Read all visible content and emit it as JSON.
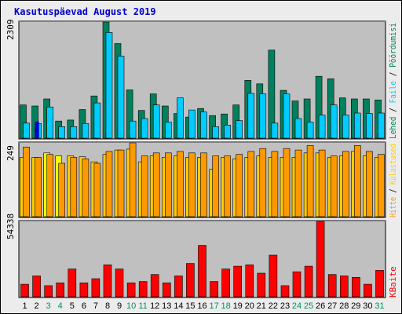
{
  "title": "Kasutuspäevad August 2019",
  "colors": {
    "title": "#0000cc",
    "page": "#ececec",
    "plot": "#c0c0c0",
    "grid": "#808080",
    "weekday_label": "#000000",
    "weekend_label": "#009060",
    "pages": "#00805c",
    "files": "#00ccff",
    "hits": "#ff9900",
    "visits": "#ffcc00",
    "visits_highlight": "#ffff00",
    "kbytes": "#ff0000",
    "legend_hits": "#ff9900",
    "legend_visits": "#ffcc00",
    "legend_files": "#00ccff",
    "legend_pages": "#00805c",
    "legend_kbytes": "#ff0000",
    "legend_sep": "#000000"
  },
  "chart_data": {
    "type": "bar",
    "days": [
      "1",
      "2",
      "3",
      "4",
      "5",
      "6",
      "7",
      "8",
      "9",
      "10",
      "11",
      "12",
      "13",
      "14",
      "15",
      "16",
      "17",
      "18",
      "19",
      "20",
      "21",
      "22",
      "23",
      "24",
      "25",
      "26",
      "27",
      "28",
      "29",
      "30",
      "31"
    ],
    "weekend": [
      false,
      false,
      true,
      true,
      false,
      false,
      false,
      false,
      false,
      true,
      true,
      false,
      false,
      false,
      false,
      false,
      true,
      true,
      false,
      false,
      false,
      false,
      false,
      true,
      true,
      false,
      false,
      false,
      false,
      false,
      true
    ],
    "panels": [
      {
        "id": "top",
        "ylabel": "2309",
        "ymax": 2309,
        "series": [
          {
            "name": "Lehed",
            "color": "#00805c",
            "values": [
              660,
              640,
              780,
              340,
              360,
              570,
              840,
              2309,
              1880,
              960,
              550,
              880,
              640,
              490,
              420,
              590,
              450,
              480,
              660,
              1150,
              1080,
              1750,
              950,
              740,
              780,
              1230,
              1180,
              800,
              780,
              780,
              760
            ]
          },
          {
            "name": "Faile",
            "color": "#00ccff",
            "values": [
              300,
              290,
              620,
              230,
              230,
              290,
              700,
              2100,
              1630,
              340,
              390,
              660,
              320,
              800,
              560,
              520,
              230,
              260,
              350,
              890,
              880,
              300,
              880,
              390,
              320,
              460,
              660,
              460,
              500,
              490,
              500
            ]
          }
        ],
        "markers": [
          {
            "day": "2",
            "value": 330,
            "color": "#0000cc"
          }
        ]
      },
      {
        "id": "middle",
        "ylabel": "249",
        "ymax": 249,
        "series": [
          {
            "name": "Külastused",
            "color": "#ffcc00",
            "values": [
              200,
              200,
              215,
              205,
              205,
              202,
              185,
              210,
              225,
              228,
              185,
              205,
              200,
              205,
              200,
              200,
              160,
              200,
              195,
              200,
              205,
              200,
              200,
              200,
              215,
              215,
              200,
              205,
              220,
              205,
              200
            ]
          },
          {
            "name": "Hitte",
            "color": "#ff9900",
            "values": [
              235,
              200,
              210,
              180,
              200,
              195,
              180,
              220,
              225,
              249,
              205,
              215,
              215,
              220,
              215,
              215,
              205,
              205,
              210,
              220,
              230,
              220,
              230,
              225,
              240,
              225,
              205,
              220,
              240,
              220,
              210
            ]
          }
        ],
        "highlights": [
          {
            "day": "3",
            "series": "Külastused",
            "color": "#ffff00"
          },
          {
            "day": "4",
            "series": "Külastused",
            "color": "#ffff00"
          }
        ]
      },
      {
        "id": "bottom",
        "ylabel": "54338",
        "ymax": 54338,
        "series": [
          {
            "name": "KBaite",
            "color": "#ff0000",
            "values": [
              9000,
              15000,
              8000,
              10000,
              20000,
              10000,
              13000,
              23000,
              20000,
              10000,
              11000,
              16000,
              10000,
              15000,
              24000,
              37000,
              11000,
              20000,
              22000,
              23000,
              17000,
              30000,
              8000,
              18000,
              22000,
              54338,
              16000,
              15000,
              14000,
              9000,
              19000
            ]
          }
        ]
      }
    ],
    "legend_right": [
      {
        "panel": "top",
        "items": [
          {
            "text": "Lehed",
            "color": "#00805c"
          },
          {
            "text": " / ",
            "color": "#000000"
          },
          {
            "text": "Faile",
            "color": "#00ccff"
          },
          {
            "text": " / ",
            "color": "#000000"
          },
          {
            "text": "Pöördumisi",
            "color": "#00805c"
          }
        ]
      },
      {
        "panel": "middle",
        "items": [
          {
            "text": "Hitte",
            "color": "#ff9900"
          },
          {
            "text": " / ",
            "color": "#000000"
          },
          {
            "text": "Külastused",
            "color": "#ffcc00"
          }
        ]
      },
      {
        "panel": "bottom",
        "items": [
          {
            "text": "KBaite",
            "color": "#ff0000"
          }
        ]
      }
    ]
  }
}
